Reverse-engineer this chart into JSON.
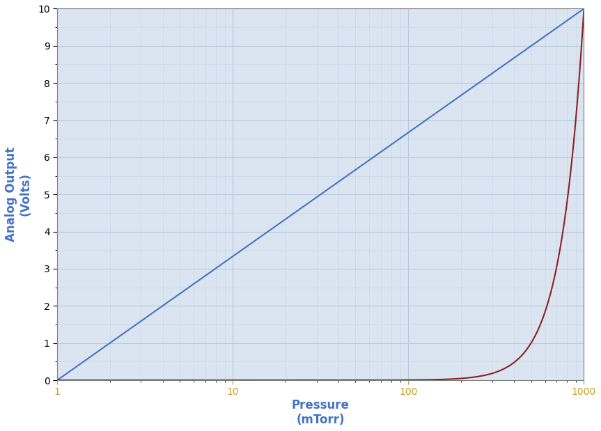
{
  "xlabel": "Pressure",
  "xlabel2": "(mTorr)",
  "ylabel_line1": "Analog Output",
  "ylabel_line2": "(Volts)",
  "xlim": [
    1,
    1000
  ],
  "ylim": [
    0,
    10
  ],
  "yticks": [
    0,
    1,
    2,
    3,
    4,
    5,
    6,
    7,
    8,
    9,
    10
  ],
  "blue_line_color": "#4472C4",
  "red_line_color": "#8B2020",
  "background_color": "#DBE5F1",
  "grid_major_color": "#B8C8D8",
  "grid_minor_color": "#C8D8E8",
  "tick_label_color_x": "#C8A020",
  "tick_label_color_y": "#000000",
  "xlabel_color": "#4472C4",
  "ylabel_color": "#4472C4",
  "line_width": 1.5,
  "red_power": 3.32
}
